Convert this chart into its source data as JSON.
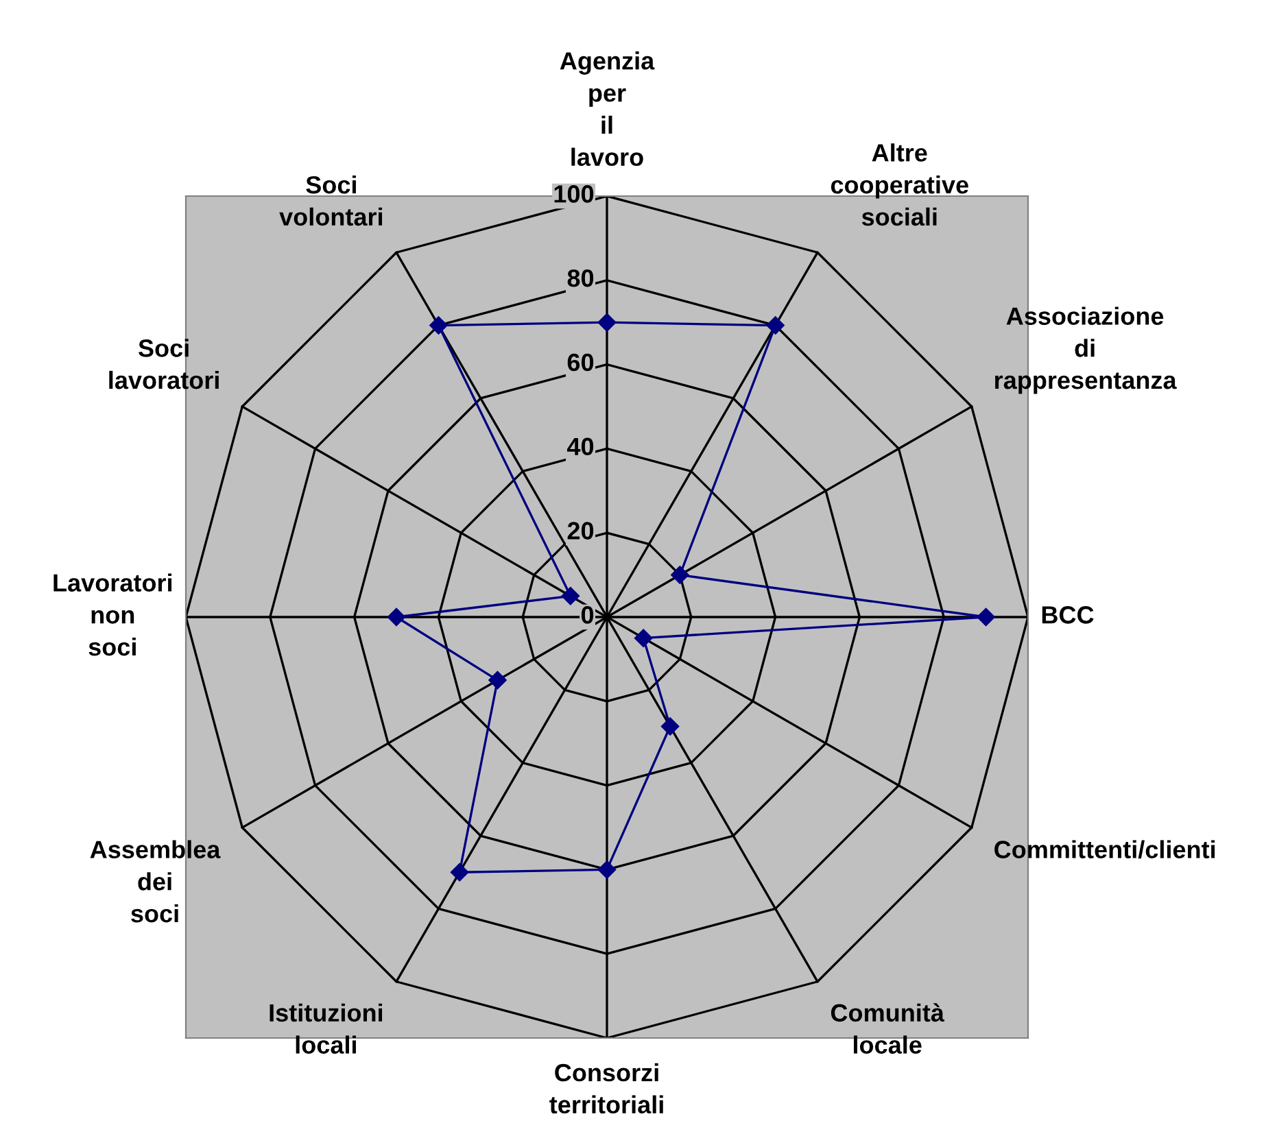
{
  "chart_data": {
    "type": "radar",
    "categories": [
      "Agenzia per il lavoro",
      "Altre cooperative sociali",
      "Associazione di rappresentanza",
      "BCC",
      "Committenti/clienti",
      "Comunità locale",
      "Consorzi territoriali",
      "Istituzioni locali",
      "Assemblea dei soci",
      "Lavoratori non soci",
      "Soci lavoratori",
      "Soci volontari"
    ],
    "series": [
      {
        "color": "#000080",
        "values": [
          70,
          80,
          20,
          90,
          10,
          30,
          60,
          70,
          30,
          50,
          10,
          80
        ]
      }
    ],
    "ylim": [
      0,
      100
    ],
    "yticks": [
      0,
      20,
      40,
      60,
      80,
      100
    ],
    "grid": true,
    "marker": "diamond",
    "line_style": "solid",
    "legend": false
  }
}
